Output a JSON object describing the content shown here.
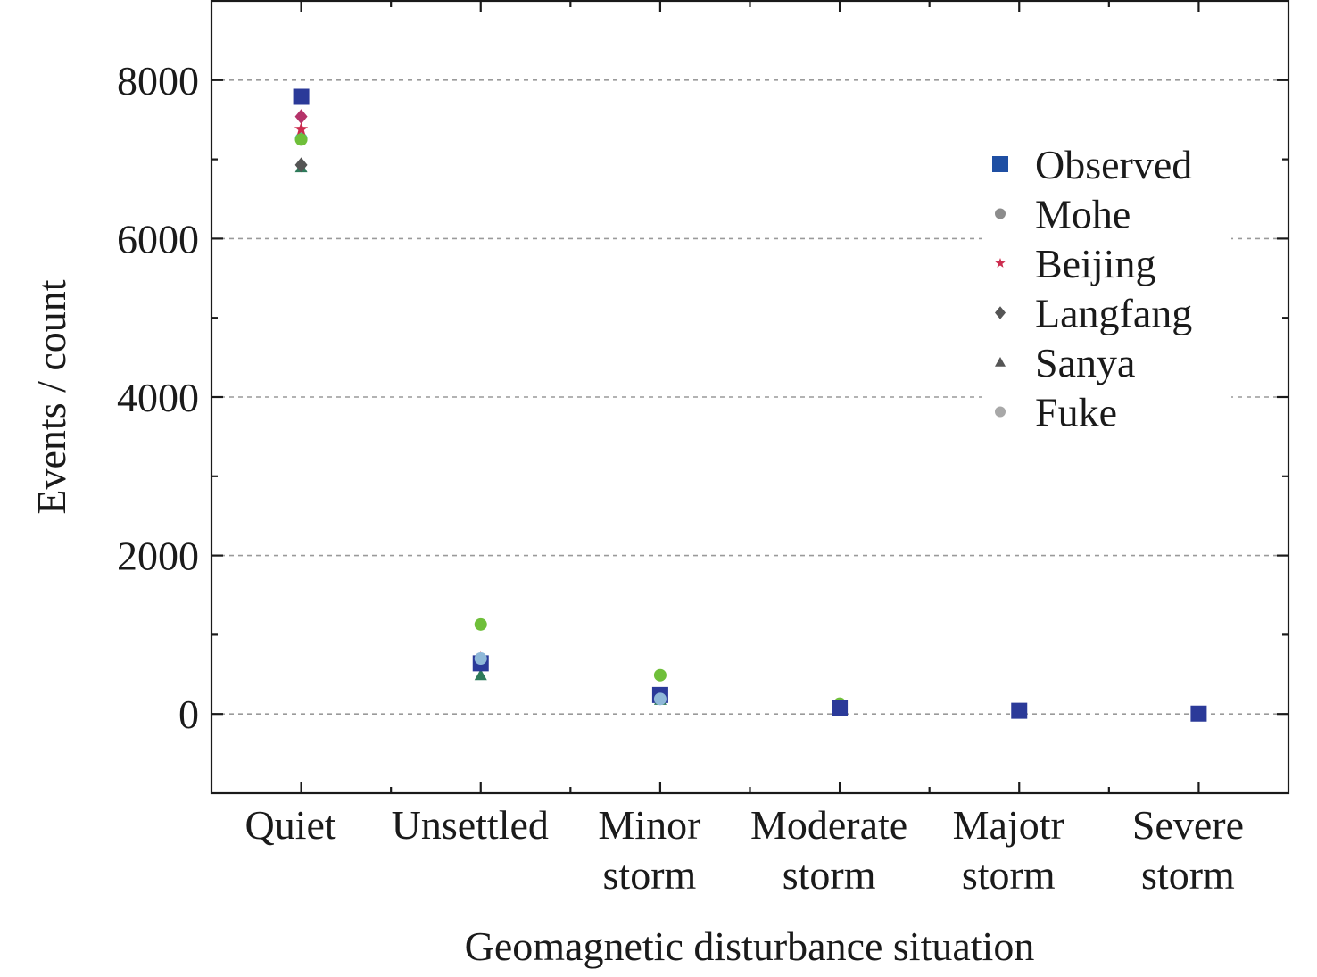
{
  "chart_data": {
    "type": "scatter",
    "title": "",
    "xlabel": "Geomagnetic disturbance situation",
    "ylabel": "Events / count",
    "ylim": [
      -1000,
      9000
    ],
    "yticks": [
      0,
      2000,
      4000,
      6000,
      8000
    ],
    "y_minor_step": 1000,
    "grid": "horizontal dashed at major y ticks",
    "legend_position": "top-right",
    "categories": [
      [
        "Quiet"
      ],
      [
        "Unsettled"
      ],
      [
        "Minor",
        "storm"
      ],
      [
        "Moderate",
        "storm"
      ],
      [
        "Majotr",
        "storm"
      ],
      [
        "Severe",
        "storm"
      ]
    ],
    "series": [
      {
        "name": "Observed",
        "marker": "square",
        "color": "#2b3a99",
        "legend_color": "#1f4fa3",
        "values": [
          7790,
          640,
          240,
          70,
          40,
          5
        ]
      },
      {
        "name": "Mohe",
        "marker": "circle",
        "color": "#6fbf3a",
        "legend_color": "#8c8c8c",
        "values": [
          7250,
          1130,
          490,
          130,
          55,
          8
        ]
      },
      {
        "name": "Beijing",
        "marker": "star",
        "color": "#cc2c4e",
        "legend_color": "#cc2c4e",
        "values": [
          7380,
          700,
          220,
          75,
          40,
          6
        ]
      },
      {
        "name": "Langfang",
        "marker": "diamond",
        "color": "#b5336a",
        "legend_color": "#555555",
        "values": [
          7540,
          680,
          230,
          80,
          45,
          7
        ]
      },
      {
        "name": "Sanya",
        "marker": "triangle",
        "color": "#2e7a5a",
        "legend_color": "#555555",
        "values": [
          6900,
          490,
          180,
          60,
          35,
          4
        ]
      },
      {
        "name": "Fuke",
        "marker": "circle",
        "color": "#40c4b0",
        "legend_color": "#a8a8a8",
        "values": [
          7260,
          690,
          210,
          70,
          50,
          6
        ]
      }
    ],
    "extra_markers": [
      {
        "category_index": 0,
        "marker": "diamond",
        "color": "#555555",
        "value": 6930
      },
      {
        "category_index": 1,
        "marker": "circle",
        "color": "#8fb8d8",
        "value": 700
      },
      {
        "category_index": 2,
        "marker": "circle",
        "color": "#8fb8d8",
        "value": 190
      }
    ]
  }
}
